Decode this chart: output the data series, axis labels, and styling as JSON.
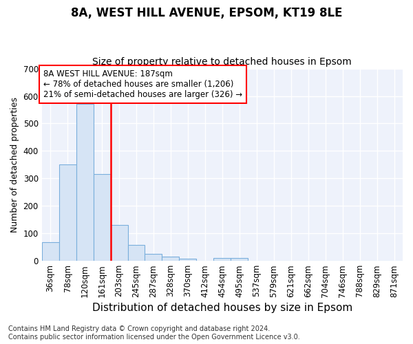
{
  "title_line1": "8A, WEST HILL AVENUE, EPSOM, KT19 8LE",
  "title_line2": "Size of property relative to detached houses in Epsom",
  "xlabel": "Distribution of detached houses by size in Epsom",
  "ylabel": "Number of detached properties",
  "categories": [
    "36sqm",
    "78sqm",
    "120sqm",
    "161sqm",
    "203sqm",
    "245sqm",
    "287sqm",
    "328sqm",
    "370sqm",
    "412sqm",
    "454sqm",
    "495sqm",
    "537sqm",
    "579sqm",
    "621sqm",
    "662sqm",
    "704sqm",
    "746sqm",
    "788sqm",
    "829sqm",
    "871sqm"
  ],
  "values": [
    68,
    352,
    570,
    315,
    130,
    57,
    25,
    15,
    8,
    0,
    10,
    10,
    0,
    0,
    0,
    0,
    0,
    0,
    0,
    0,
    0
  ],
  "bar_color": "#d6e4f5",
  "bar_edge_color": "#7aaedc",
  "vline_color": "red",
  "vline_x_index": 3.5,
  "ylim": [
    0,
    700
  ],
  "yticks": [
    0,
    100,
    200,
    300,
    400,
    500,
    600,
    700
  ],
  "annotation_box_text": "8A WEST HILL AVENUE: 187sqm\n← 78% of detached houses are smaller (1,206)\n21% of semi-detached houses are larger (326) →",
  "footnote": "Contains HM Land Registry data © Crown copyright and database right 2024.\nContains public sector information licensed under the Open Government Licence v3.0.",
  "background_color": "#ffffff",
  "plot_bg_color": "#eef2fb",
  "grid_color": "#ffffff",
  "title_fontsize": 12,
  "subtitle_fontsize": 10,
  "xlabel_fontsize": 11,
  "ylabel_fontsize": 9,
  "tick_fontsize": 8.5,
  "footnote_fontsize": 7,
  "ann_fontsize": 8.5
}
